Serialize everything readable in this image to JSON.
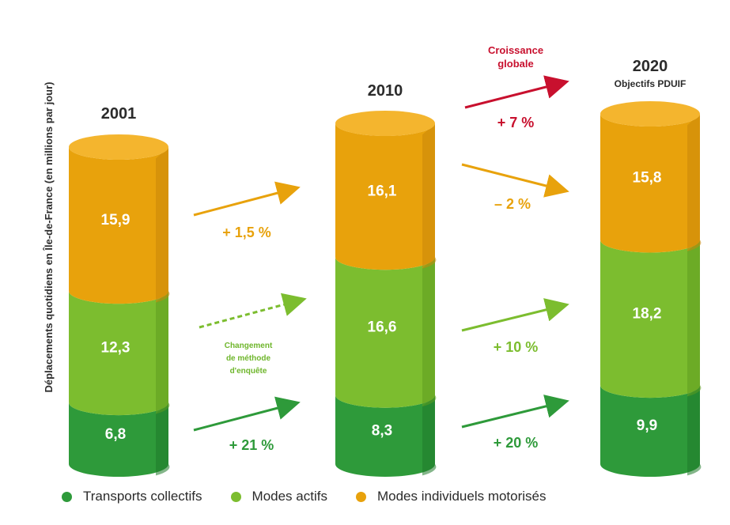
{
  "chart_data": {
    "type": "bar",
    "stacked": true,
    "ylabel": "Déplacements quotidiens en Île-de-France (en millions par jour)",
    "categories": [
      "2001",
      "2010",
      "2020"
    ],
    "category_subtitles": [
      "",
      "",
      "Objectifs PDUIF"
    ],
    "series": [
      {
        "name": "Transports collectifs",
        "color": "#2e9a3a",
        "values": [
          6.8,
          8.3,
          9.9
        ],
        "labels": [
          "6,8",
          "8,3",
          "9,9"
        ]
      },
      {
        "name": "Modes actifs",
        "color": "#7cbd2f",
        "values": [
          12.3,
          16.6,
          18.2
        ],
        "labels": [
          "12,3",
          "16,6",
          "18,2"
        ]
      },
      {
        "name": "Modes individuels motorisés",
        "color": "#e8a20c",
        "values": [
          15.9,
          16.1,
          15.8
        ],
        "labels": [
          "15,9",
          "16,1",
          "15,8"
        ]
      }
    ],
    "changes": {
      "2001_2010": {
        "Modes individuels motorisés": "+ 1,5 %",
        "Modes actifs": "Changement de méthode d'enquête",
        "Transports collectifs": "+ 21 %"
      },
      "2010_2020": {
        "Croissance globale": "+ 7 %",
        "Modes individuels motorisés": "– 2 %",
        "Modes actifs": "+ 10 %",
        "Transports collectifs": "+ 20 %"
      }
    },
    "annotations": {
      "croissance_label": [
        "Croissance",
        "globale"
      ],
      "methode_note": [
        "Changement",
        "de méthode",
        "d'enquête"
      ]
    },
    "legend_position": "bottom",
    "grid": false,
    "colors": {
      "transports": "#2e9a3a",
      "actifs": "#7cbd2f",
      "motorises": "#e8a20c",
      "croissance": "#c8102e"
    }
  },
  "legend": [
    {
      "label": "Transports collectifs",
      "color": "#2e9a3a"
    },
    {
      "label": "Modes actifs",
      "color": "#7cbd2f"
    },
    {
      "label": "Modes individuels motorisés",
      "color": "#e8a20c"
    }
  ]
}
